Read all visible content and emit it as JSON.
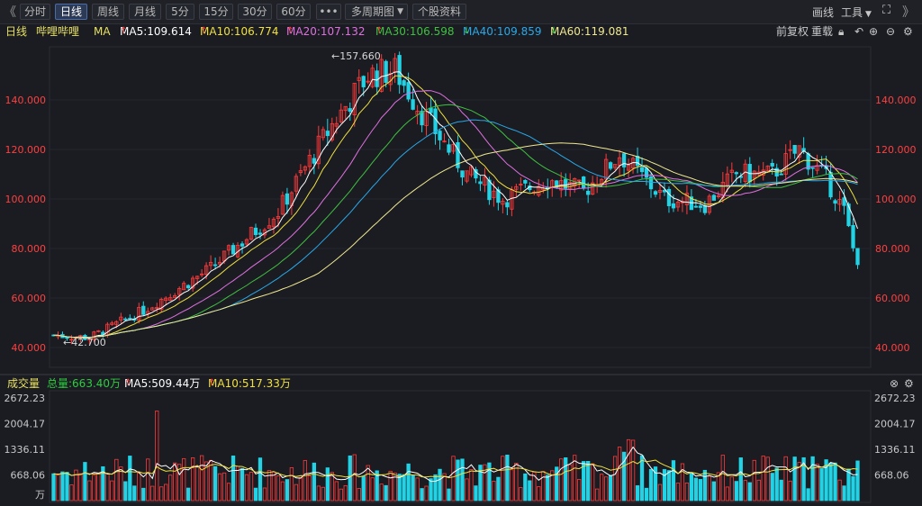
{
  "toolbar": {
    "nav_prev": "《",
    "nav_next": "》",
    "periods": [
      "分时",
      "日线",
      "周线",
      "月线",
      "5分",
      "15分",
      "30分",
      "60分"
    ],
    "active_period": "日线",
    "more": "•••",
    "multi_period": "多周期图",
    "stock_info": "个股资料",
    "draw": "画线",
    "tools": "工具"
  },
  "ma_bar": {
    "period_label": "日线",
    "stock_name": "哔哩哔哩",
    "ma_label": "MA",
    "ma5": "MA5:109.614",
    "ma10": "MA10:106.774",
    "ma20": "MA20:107.132",
    "ma30": "MA30:106.598",
    "ma40": "MA40:109.859",
    "ma60": "MA60:119.081",
    "adjust": "前复权",
    "reload": "重载",
    "colors": {
      "ma5": "#ffffff",
      "ma10": "#f0e040",
      "ma20": "#e070e0",
      "ma30": "#40c040",
      "ma40": "#2aa8e8",
      "ma60": "#f0e890"
    }
  },
  "price_axis": [
    "140.000",
    "120.000",
    "100.000",
    "80.000",
    "60.000",
    "40.000"
  ],
  "annotations": {
    "high": "157.660",
    "low": "42.700"
  },
  "volume_bar": {
    "title": "成交量",
    "total": "总量:663.40万",
    "ma5": "MA5:509.44万",
    "ma10": "MA10:517.33万"
  },
  "volume_axis": [
    "2672.23",
    "2004.17",
    "1336.11",
    "668.06",
    "万"
  ],
  "colors": {
    "up": "#ff3b3b",
    "down": "#22d3e6",
    "bg": "#1a1c22",
    "grid": "#2a2c33"
  }
}
